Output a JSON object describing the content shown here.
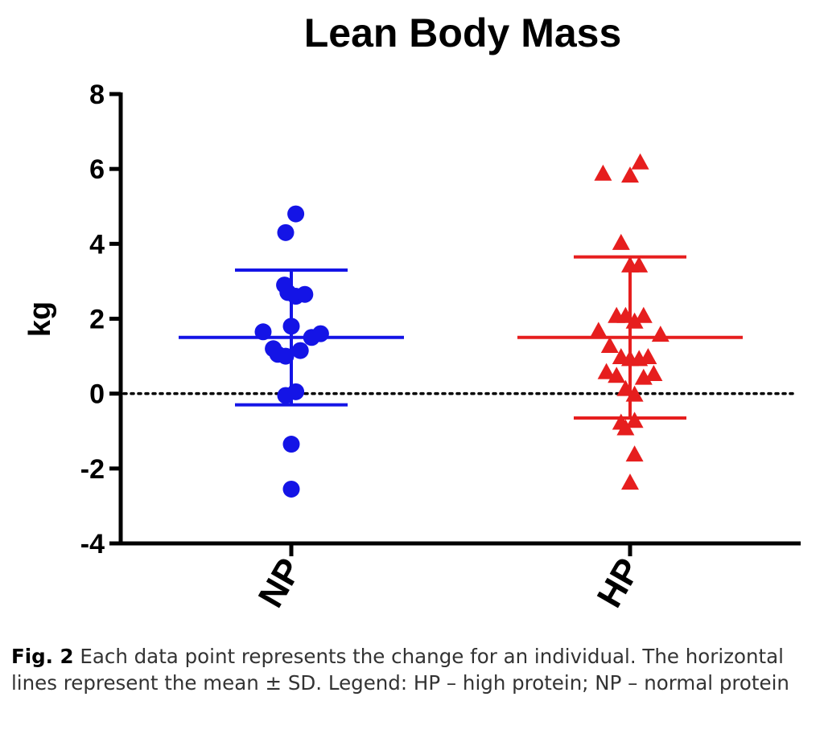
{
  "chart_data": {
    "type": "scatter",
    "title": "Lean Body Mass",
    "ylabel": "kg",
    "xlabel": "",
    "ylim": [
      -4,
      8
    ],
    "yticks": [
      -4,
      -2,
      0,
      2,
      4,
      6,
      8
    ],
    "categories": [
      "NP",
      "HP"
    ],
    "reference_line": 0,
    "series": [
      {
        "name": "NP",
        "color": "#1414e6",
        "marker": "circle",
        "mean": 1.5,
        "sd_upper": 3.3,
        "sd_lower": -0.3,
        "points": [
          {
            "x": -0.25,
            "y": 1.65
          },
          {
            "x": -0.16,
            "y": 1.2
          },
          {
            "x": -0.12,
            "y": 1.05
          },
          {
            "x": -0.05,
            "y": 1.0
          },
          {
            "x": -0.06,
            "y": 2.9
          },
          {
            "x": -0.03,
            "y": 2.7
          },
          {
            "x": 0.04,
            "y": 2.6
          },
          {
            "x": 0.12,
            "y": 2.65
          },
          {
            "x": 0.0,
            "y": 1.8
          },
          {
            "x": 0.08,
            "y": 1.15
          },
          {
            "x": 0.18,
            "y": 1.5
          },
          {
            "x": 0.26,
            "y": 1.6
          },
          {
            "x": -0.05,
            "y": 4.3
          },
          {
            "x": 0.04,
            "y": 4.8
          },
          {
            "x": -0.05,
            "y": -0.05
          },
          {
            "x": 0.04,
            "y": 0.05
          },
          {
            "x": 0.0,
            "y": -1.35
          },
          {
            "x": 0.0,
            "y": -2.55
          }
        ]
      },
      {
        "name": "HP",
        "color": "#e61e1e",
        "marker": "triangle",
        "mean": 1.5,
        "sd_upper": 3.65,
        "sd_lower": -0.65,
        "points": [
          {
            "x": -0.24,
            "y": 5.85
          },
          {
            "x": 0.0,
            "y": 5.8
          },
          {
            "x": 0.09,
            "y": 6.15
          },
          {
            "x": -0.08,
            "y": 4.0
          },
          {
            "x": 0.0,
            "y": 3.4
          },
          {
            "x": 0.08,
            "y": 3.4
          },
          {
            "x": -0.12,
            "y": 2.05
          },
          {
            "x": -0.04,
            "y": 2.05
          },
          {
            "x": 0.04,
            "y": 1.9
          },
          {
            "x": 0.12,
            "y": 2.05
          },
          {
            "x": -0.28,
            "y": 1.65
          },
          {
            "x": -0.18,
            "y": 1.25
          },
          {
            "x": 0.27,
            "y": 1.55
          },
          {
            "x": -0.08,
            "y": 0.95
          },
          {
            "x": 0.0,
            "y": 0.9
          },
          {
            "x": 0.08,
            "y": 0.9
          },
          {
            "x": 0.16,
            "y": 0.95
          },
          {
            "x": -0.21,
            "y": 0.55
          },
          {
            "x": -0.12,
            "y": 0.45
          },
          {
            "x": 0.12,
            "y": 0.4
          },
          {
            "x": 0.21,
            "y": 0.5
          },
          {
            "x": -0.04,
            "y": 0.1
          },
          {
            "x": 0.04,
            "y": -0.05
          },
          {
            "x": -0.08,
            "y": -0.8
          },
          {
            "x": -0.04,
            "y": -0.95
          },
          {
            "x": 0.04,
            "y": -0.75
          },
          {
            "x": 0.04,
            "y": -1.65
          },
          {
            "x": 0.0,
            "y": -2.4
          }
        ]
      }
    ]
  },
  "caption": {
    "label": "Fig. 2",
    "text": " Each data point represents the change for an individual. The horizontal lines represent the mean ± SD. Legend: HP – high protein; NP – normal protein"
  }
}
